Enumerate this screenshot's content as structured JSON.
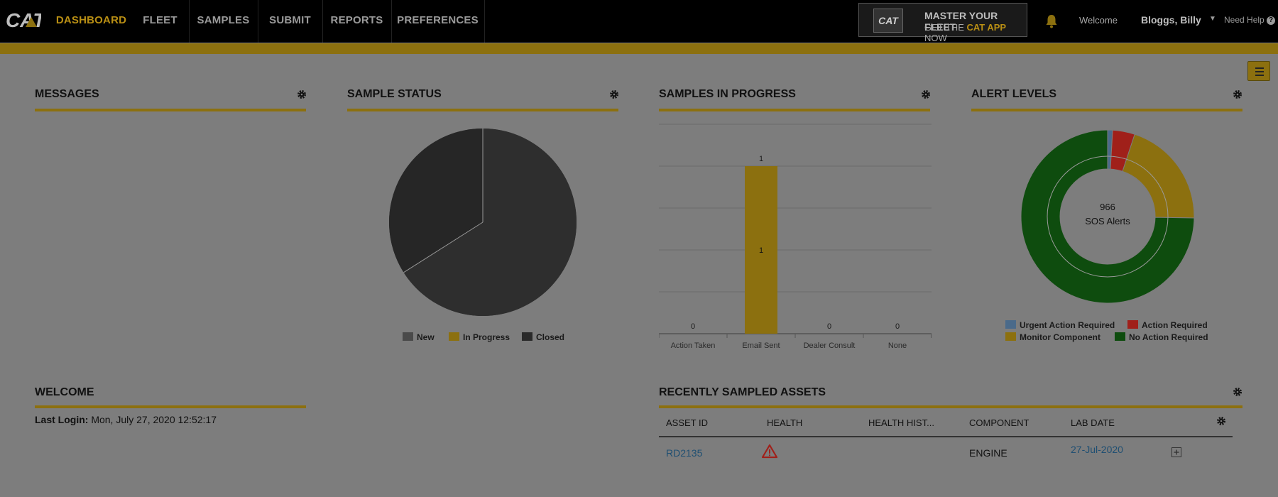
{
  "brand": {
    "logo_text": "CAT"
  },
  "nav": {
    "items": [
      {
        "label": "DASHBOARD",
        "active": true
      },
      {
        "label": "FLEET",
        "active": false
      },
      {
        "label": "SAMPLES",
        "active": false
      },
      {
        "label": "SUBMIT",
        "active": false
      },
      {
        "label": "REPORTS",
        "active": false
      },
      {
        "label": "PREFERENCES",
        "active": false
      }
    ]
  },
  "promo": {
    "badge": "CAT",
    "line1": "MASTER YOUR FLEET",
    "line2_prefix": "GET THE ",
    "line2_highlight": "CAT APP",
    "line2_suffix": " NOW"
  },
  "user": {
    "welcome": "Welcome",
    "name": "Bloggs, Billy",
    "help": "Need Help"
  },
  "icons": {
    "notifications": "bell-icon",
    "settings": "gear-icon",
    "menu": "hamburger-icon",
    "warning": "warning-triangle-icon",
    "expand": "plus-box-icon"
  },
  "colors": {
    "accent": "#8c700f",
    "nav_active": "#b98f14",
    "urgent": "#4a6a8a",
    "action": "#a0201a",
    "monitor": "#8c700f",
    "no_action": "#0e4c0e"
  },
  "widgets": {
    "messages": {
      "title": "MESSAGES"
    },
    "sample_status": {
      "title": "SAMPLE STATUS",
      "legend": [
        "New",
        "In Progress",
        "Closed"
      ]
    },
    "samples_in_progress": {
      "title": "SAMPLES IN PROGRESS"
    },
    "alert_levels": {
      "title": "ALERT LEVELS",
      "center_value": "966",
      "center_label": "SOS Alerts",
      "legend": [
        "Urgent Action Required",
        "Action Required",
        "Monitor Component",
        "No Action Required"
      ]
    },
    "welcome": {
      "title": "WELCOME",
      "last_login_label": "Last Login:",
      "last_login_value": " Mon, July 27, 2020 12:52:17"
    },
    "recent_assets": {
      "title": "RECENTLY SAMPLED ASSETS",
      "columns": [
        "ASSET ID",
        "HEALTH",
        "HEALTH HIST...",
        "COMPONENT",
        "LAB DATE"
      ],
      "rows": [
        {
          "asset_id": "RD2135",
          "health": "warning",
          "health_history": "",
          "component": "ENGINE",
          "lab_date": "27-Jul-2020"
        }
      ]
    }
  },
  "chart_data": [
    {
      "type": "pie",
      "title": "SAMPLE STATUS",
      "categories": [
        "New",
        "In Progress",
        "Closed"
      ],
      "values": [
        0,
        0,
        66
      ],
      "colors": [
        "#4a4a4a",
        "#8c700f",
        "#2a2a2a"
      ],
      "legend_position": "bottom"
    },
    {
      "type": "bar",
      "title": "SAMPLES IN PROGRESS",
      "categories": [
        "Action Taken",
        "Email Sent",
        "Dealer Consult",
        "None"
      ],
      "values": [
        0,
        1,
        0,
        0
      ],
      "ylim": [
        0,
        1.25
      ],
      "grid": true
    },
    {
      "type": "pie",
      "title": "ALERT LEVELS",
      "subtype": "donut",
      "center_text": [
        "966",
        "SOS Alerts"
      ],
      "categories": [
        "Urgent Action Required",
        "Action Required",
        "Monitor Component",
        "No Action Required"
      ],
      "values": [
        9,
        40,
        195,
        722
      ],
      "colors": [
        "#4a6a8a",
        "#a0201a",
        "#8c700f",
        "#0e4c0e"
      ],
      "legend_position": "bottom"
    }
  ]
}
